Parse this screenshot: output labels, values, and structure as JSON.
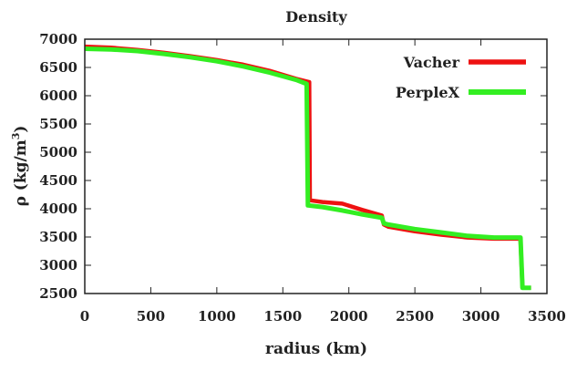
{
  "chart_data": {
    "type": "line",
    "title": "Density",
    "xlabel": "radius (km)",
    "ylabel_base": "ρ (kg/m",
    "ylabel_sup": "3",
    "ylabel_close": ")",
    "xlim": [
      0,
      3500
    ],
    "ylim": [
      2500,
      7000
    ],
    "x_ticks": [
      0,
      500,
      1000,
      1500,
      2000,
      2500,
      3000,
      3500
    ],
    "y_ticks": [
      2500,
      3000,
      3500,
      4000,
      4500,
      5000,
      5500,
      6000,
      6500,
      7000
    ],
    "grid": false,
    "legend_position": "top-right",
    "series": [
      {
        "name": "Vacher",
        "color": "#ee1111",
        "points": [
          [
            0,
            6870
          ],
          [
            200,
            6850
          ],
          [
            400,
            6810
          ],
          [
            600,
            6760
          ],
          [
            800,
            6700
          ],
          [
            1000,
            6630
          ],
          [
            1200,
            6550
          ],
          [
            1400,
            6440
          ],
          [
            1600,
            6300
          ],
          [
            1700,
            6240
          ],
          [
            1705,
            4150
          ],
          [
            1800,
            4120
          ],
          [
            1950,
            4090
          ],
          [
            2100,
            3980
          ],
          [
            2250,
            3880
          ],
          [
            2265,
            3720
          ],
          [
            2300,
            3680
          ],
          [
            2500,
            3600
          ],
          [
            2700,
            3540
          ],
          [
            2900,
            3490
          ],
          [
            3100,
            3470
          ],
          [
            3290,
            3470
          ],
          [
            3300,
            3440
          ],
          [
            3315,
            2600
          ],
          [
            3380,
            2600
          ]
        ]
      },
      {
        "name": "PerpleX",
        "color": "#33ee22",
        "points": [
          [
            0,
            6830
          ],
          [
            200,
            6820
          ],
          [
            400,
            6790
          ],
          [
            600,
            6740
          ],
          [
            800,
            6680
          ],
          [
            1000,
            6610
          ],
          [
            1200,
            6520
          ],
          [
            1400,
            6410
          ],
          [
            1600,
            6280
          ],
          [
            1680,
            6210
          ],
          [
            1690,
            4060
          ],
          [
            1800,
            4030
          ],
          [
            1950,
            3970
          ],
          [
            2100,
            3900
          ],
          [
            2250,
            3840
          ],
          [
            2265,
            3740
          ],
          [
            2300,
            3720
          ],
          [
            2500,
            3640
          ],
          [
            2700,
            3580
          ],
          [
            2900,
            3520
          ],
          [
            3100,
            3490
          ],
          [
            3300,
            3490
          ],
          [
            3315,
            2600
          ],
          [
            3380,
            2600
          ]
        ]
      }
    ]
  }
}
